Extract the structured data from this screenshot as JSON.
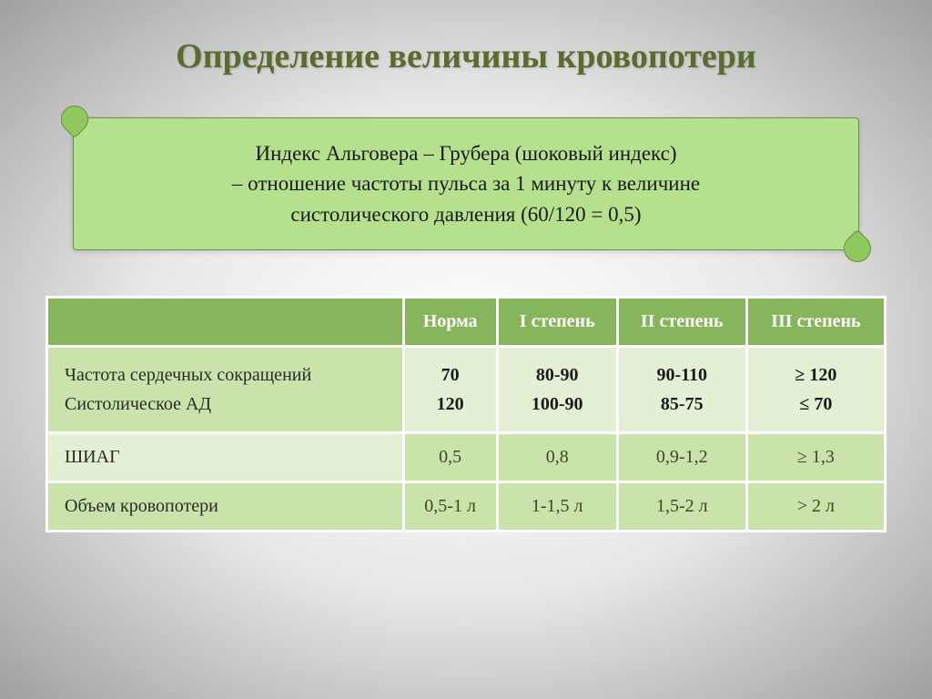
{
  "title": "Определение величины кровопотери",
  "scroll": {
    "line1": "Индекс Альговера – Грубера (шоковый индекс)",
    "line2": "– отношение частоты пульса за 1 минуту к величине",
    "line3": "систолического давления (60/120 = 0,5)"
  },
  "table": {
    "headers": [
      "",
      "Норма",
      "I степень",
      "II степень",
      "III степень"
    ],
    "rows": [
      {
        "label_a": "Частота сердечных сокращений",
        "label_b": "Систолическое АД",
        "cells": [
          {
            "a": "70",
            "b": "120"
          },
          {
            "a": "80-90",
            "b": "100-90"
          },
          {
            "a": "90-110",
            "b": "85-75"
          },
          {
            "a": "≥ 120",
            "b": "≤ 70"
          }
        ]
      },
      {
        "label": "ШИАГ",
        "cells": [
          "0,5",
          "0,8",
          "0,9-1,2",
          "≥ 1,3"
        ]
      },
      {
        "label": "Объем кровопотери",
        "cells": [
          "0,5-1 л",
          "1-1,5 л",
          "1,5-2 л",
          "> 2 л"
        ]
      }
    ]
  },
  "colors": {
    "title": "#5a6b2e",
    "scroll_bg": "#b5e08e",
    "header_bg": "#87b55c",
    "row_light": "#e4f0d4",
    "row_dark": "#c9e3ab"
  }
}
